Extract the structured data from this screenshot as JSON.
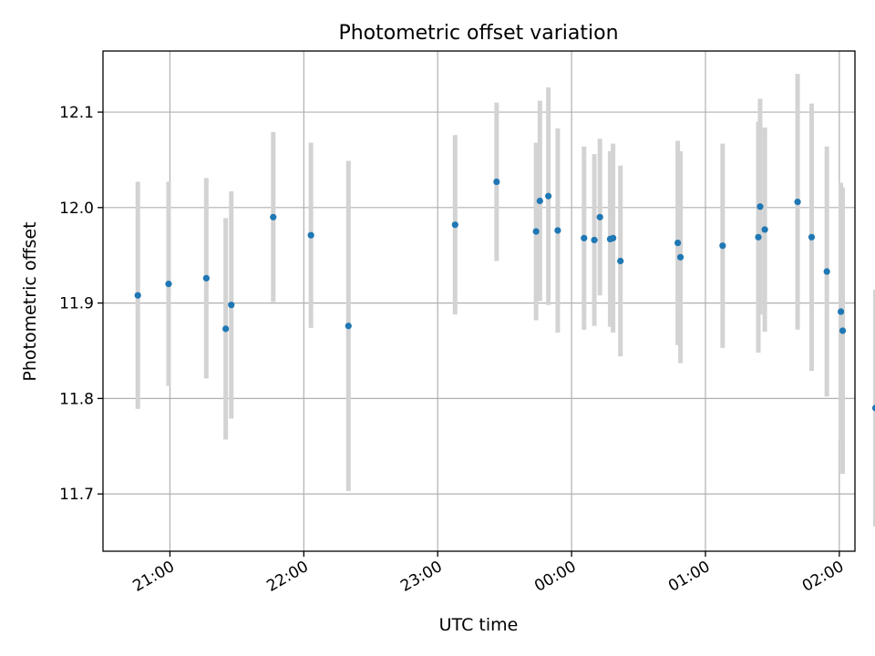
{
  "chart_data": {
    "type": "scatter",
    "title": "Photometric offset variation",
    "xlabel": "UTC time",
    "ylabel": "Photometric offset",
    "x_axis_type": "time",
    "x_start_time": "20:30",
    "xlim_minutes": [
      0,
      337
    ],
    "ylim": [
      11.64,
      12.164
    ],
    "x_ticks": [
      {
        "label": "21:00",
        "minute": 30
      },
      {
        "label": "22:00",
        "minute": 90
      },
      {
        "label": "23:00",
        "minute": 150
      },
      {
        "label": "00:00",
        "minute": 210
      },
      {
        "label": "01:00",
        "minute": 270
      },
      {
        "label": "02:00",
        "minute": 330
      }
    ],
    "y_ticks": [
      "11.7",
      "11.8",
      "11.9",
      "12.0",
      "12.1"
    ],
    "grid": true,
    "colors": {
      "marker": "#1f77b4",
      "errorbar": "#d3d3d3"
    },
    "points": [
      {
        "t": 15.6,
        "y": 11.908,
        "err": 0.119
      },
      {
        "t": 29.4,
        "y": 11.92,
        "err": 0.107
      },
      {
        "t": 46.3,
        "y": 11.926,
        "err": 0.105
      },
      {
        "t": 55.0,
        "y": 11.873,
        "err": 0.116
      },
      {
        "t": 57.5,
        "y": 11.898,
        "err": 0.119
      },
      {
        "t": 76.3,
        "y": 11.99,
        "err": 0.089
      },
      {
        "t": 93.2,
        "y": 11.971,
        "err": 0.097
      },
      {
        "t": 110.0,
        "y": 11.876,
        "err": 0.173
      },
      {
        "t": 157.8,
        "y": 11.982,
        "err": 0.094
      },
      {
        "t": 176.4,
        "y": 12.027,
        "err": 0.083
      },
      {
        "t": 194.1,
        "y": 11.975,
        "err": 0.093
      },
      {
        "t": 195.8,
        "y": 12.007,
        "err": 0.105
      },
      {
        "t": 199.6,
        "y": 12.012,
        "err": 0.114
      },
      {
        "t": 203.8,
        "y": 11.976,
        "err": 0.107
      },
      {
        "t": 215.6,
        "y": 11.968,
        "err": 0.096
      },
      {
        "t": 220.2,
        "y": 11.966,
        "err": 0.09
      },
      {
        "t": 222.7,
        "y": 11.99,
        "err": 0.082
      },
      {
        "t": 227.3,
        "y": 11.967,
        "err": 0.092
      },
      {
        "t": 228.6,
        "y": 11.968,
        "err": 0.099
      },
      {
        "t": 231.9,
        "y": 11.944,
        "err": 0.1
      },
      {
        "t": 257.6,
        "y": 11.963,
        "err": 0.107
      },
      {
        "t": 258.8,
        "y": 11.948,
        "err": 0.111
      },
      {
        "t": 277.7,
        "y": 11.96,
        "err": 0.107
      },
      {
        "t": 293.7,
        "y": 11.969,
        "err": 0.121
      },
      {
        "t": 294.5,
        "y": 12.001,
        "err": 0.113
      },
      {
        "t": 296.6,
        "y": 11.977,
        "err": 0.107
      },
      {
        "t": 311.3,
        "y": 12.006,
        "err": 0.134
      },
      {
        "t": 317.6,
        "y": 11.969,
        "err": 0.14
      },
      {
        "t": 324.4,
        "y": 11.933,
        "err": 0.131
      },
      {
        "t": 330.7,
        "y": 11.891,
        "err": 0.135
      },
      {
        "t": 331.5,
        "y": 11.871,
        "err": 0.15
      },
      {
        "t": 346.2,
        "y": 11.79,
        "err": 0.124
      }
    ]
  }
}
